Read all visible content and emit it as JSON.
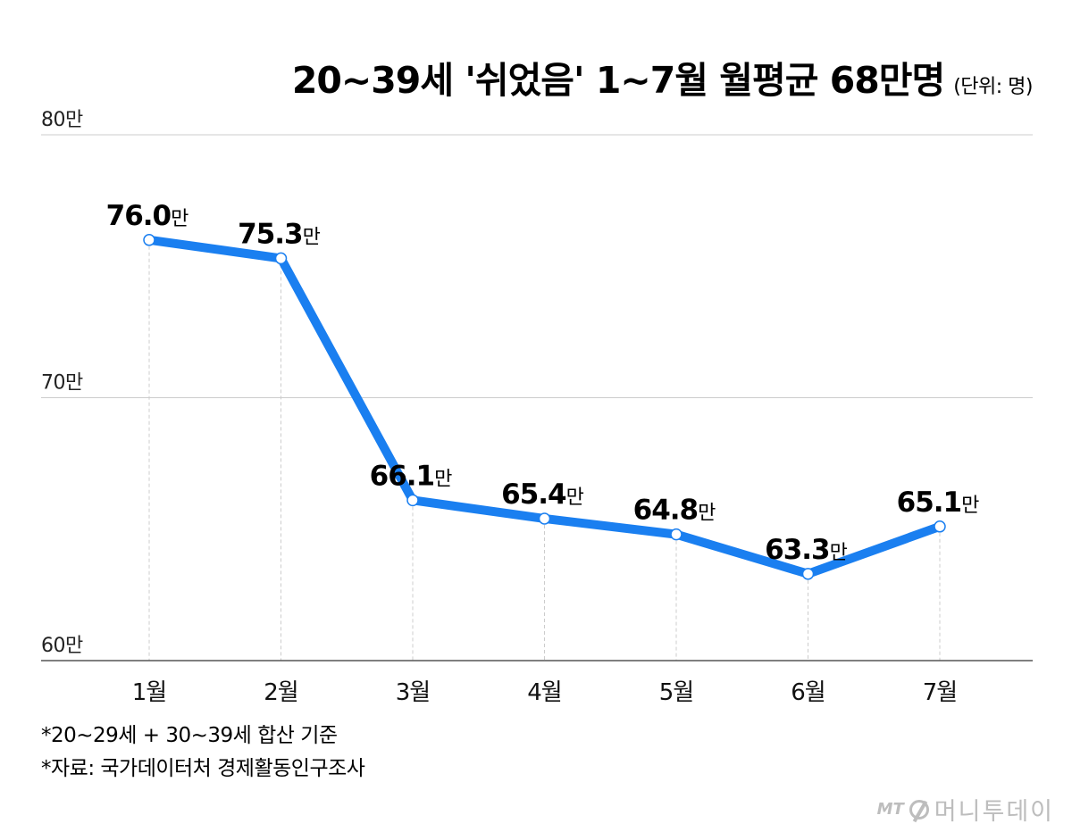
{
  "header": {
    "title": "20~39세 '쉬었음' 1~7월 월평균 68만명",
    "unit": "(단위: 명)"
  },
  "notes": [
    "*20~29세 + 30~39세 합산 기준",
    "*자료: 국가데이터처 경제활동인구조사"
  ],
  "brand": {
    "mark": "MT",
    "name": "머니투데이",
    "logo_icon": "mt-logo-icon"
  },
  "colors": {
    "line": "#1A7FF0",
    "grid": "#cccccc",
    "guide": "#cccccc",
    "axis": "#555555"
  },
  "chart_data": {
    "type": "line",
    "categories": [
      "1월",
      "2월",
      "3월",
      "4월",
      "5월",
      "6월",
      "7월"
    ],
    "series": [
      {
        "values": [
          76.0,
          75.3,
          66.1,
          65.4,
          64.8,
          63.3,
          65.1
        ]
      }
    ],
    "data_labels": [
      "76.0",
      "75.3",
      "66.1",
      "65.4",
      "64.8",
      "63.3",
      "65.1"
    ],
    "data_label_suffix": "만",
    "yticks": [
      60,
      70,
      80
    ],
    "ytick_labels": [
      "60만",
      "70만",
      "80만"
    ],
    "ylim": [
      60,
      80
    ],
    "grid": true,
    "title": "20~39세 '쉬었음' 1~7월 월평균 68만명",
    "xlabel": "",
    "ylabel": ""
  }
}
